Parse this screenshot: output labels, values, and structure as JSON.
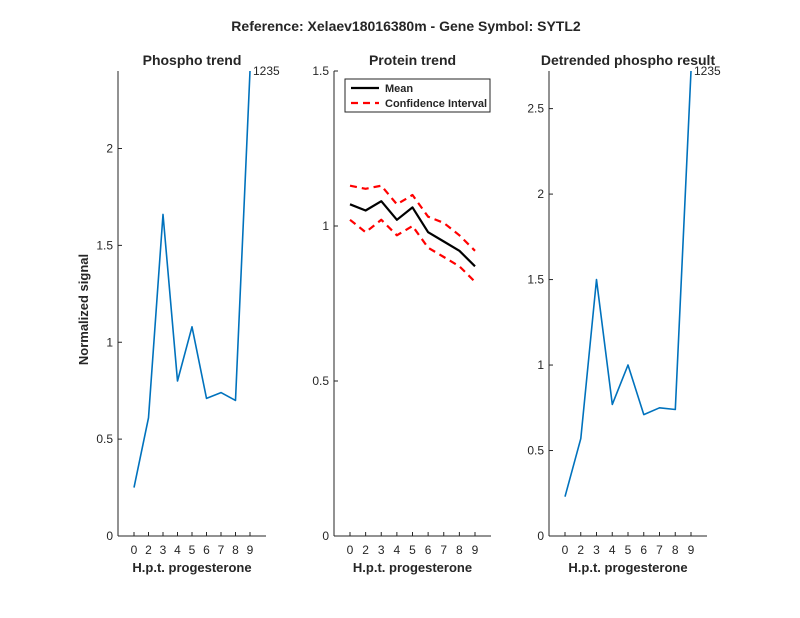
{
  "figure": {
    "title": "Reference:  Xelaev18016380m - Gene Symbol:  SYTL2"
  },
  "colors": {
    "phospho_line": "#0072BD",
    "mean_line": "#000000",
    "ci_line": "#FF0000",
    "axis": "#262626"
  },
  "chart_data": [
    {
      "type": "line",
      "title": "Phospho trend",
      "xlabel": "H.p.t. progesterone",
      "ylabel": "Normalized signal",
      "categories": [
        "0",
        "2",
        "3",
        "4",
        "5",
        "6",
        "7",
        "8",
        "9"
      ],
      "ylim": [
        0,
        2.4
      ],
      "yticks": [
        0,
        0.5,
        1,
        1.5,
        2
      ],
      "ytick_labels": [
        "0",
        "0.5",
        "1",
        "1.5",
        "2"
      ],
      "grid": false,
      "annotation": "1235",
      "series": [
        {
          "values": [
            0.25,
            0.61,
            1.66,
            0.8,
            1.08,
            0.71,
            0.74,
            0.7,
            2.4
          ]
        }
      ]
    },
    {
      "type": "line",
      "title": "Protein trend",
      "xlabel": "H.p.t. progesterone",
      "ylabel": "",
      "categories": [
        "0",
        "2",
        "3",
        "4",
        "5",
        "6",
        "7",
        "8",
        "9"
      ],
      "ylim": [
        0,
        1.5
      ],
      "yticks": [
        0,
        0.5,
        1,
        1.5
      ],
      "ytick_labels": [
        "0",
        "0.5",
        "1",
        "1.5"
      ],
      "grid": false,
      "legend_position": "top",
      "series": [
        {
          "name": "Mean",
          "style": "solid",
          "values": [
            1.07,
            1.05,
            1.08,
            1.02,
            1.06,
            0.98,
            0.95,
            0.92,
            0.87
          ]
        },
        {
          "name": "Confidence Interval",
          "style": "dashed",
          "values": [
            1.13,
            1.12,
            1.13,
            1.07,
            1.1,
            1.03,
            1.01,
            0.97,
            0.92
          ]
        },
        {
          "name": "Confidence Interval",
          "style": "dashed",
          "legend": false,
          "values": [
            1.02,
            0.98,
            1.02,
            0.97,
            1.0,
            0.93,
            0.9,
            0.87,
            0.82
          ]
        }
      ]
    },
    {
      "type": "line",
      "title": "Detrended phospho result",
      "xlabel": "H.p.t. progesterone",
      "ylabel": "",
      "categories": [
        "0",
        "2",
        "3",
        "4",
        "5",
        "6",
        "7",
        "8",
        "9"
      ],
      "ylim": [
        0,
        2.72
      ],
      "yticks": [
        0,
        0.5,
        1,
        1.5,
        2,
        2.5
      ],
      "ytick_labels": [
        "0",
        "0.5",
        "1",
        "1.5",
        "2",
        "2.5"
      ],
      "grid": false,
      "annotation": "1235",
      "series": [
        {
          "values": [
            0.23,
            0.57,
            1.5,
            0.77,
            1.0,
            0.71,
            0.75,
            0.74,
            2.72
          ]
        }
      ]
    }
  ]
}
